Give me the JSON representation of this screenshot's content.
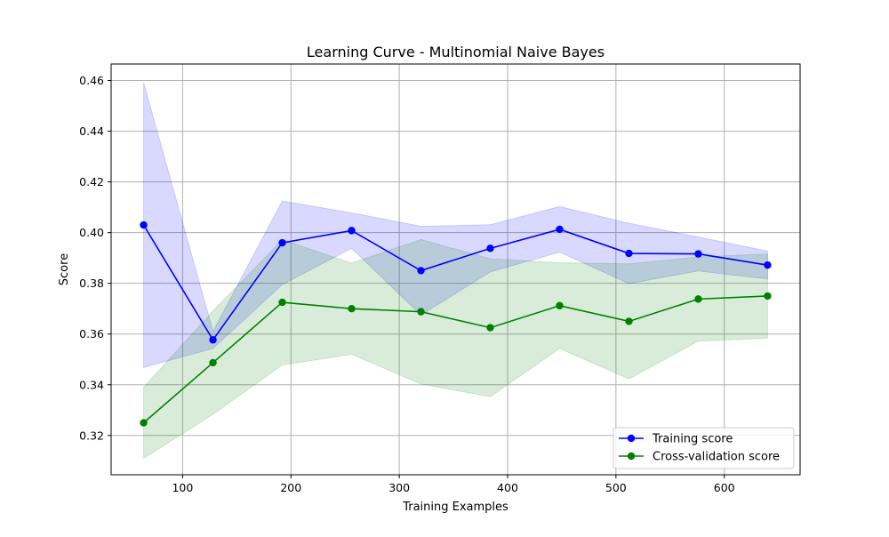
{
  "chart_data": {
    "type": "line",
    "title": "Learning Curve - Multinomial Naive Bayes",
    "xlabel": "Training Examples",
    "ylabel": "Score",
    "xlim": [
      34,
      670
    ],
    "ylim": [
      0.3045,
      0.4665
    ],
    "xticks": [
      100,
      200,
      300,
      400,
      500,
      600
    ],
    "yticks": [
      0.32,
      0.34,
      0.36,
      0.38,
      0.4,
      0.42,
      0.44,
      0.46
    ],
    "grid": true,
    "legend_position": "lower-right",
    "x": [
      64,
      128,
      192,
      256,
      320,
      384,
      448,
      512,
      576,
      640
    ],
    "series": [
      {
        "name": "Training score",
        "color": "#0000ff",
        "band_color": "#0000ff",
        "values": [
          0.403,
          0.3577,
          0.396,
          0.4008,
          0.385,
          0.3938,
          0.4013,
          0.3918,
          0.3916,
          0.3872
        ],
        "band_lower": [
          0.3468,
          0.3543,
          0.3795,
          0.3938,
          0.3675,
          0.3845,
          0.3923,
          0.3799,
          0.3849,
          0.3817
        ],
        "band_upper": [
          0.4592,
          0.3611,
          0.4125,
          0.4078,
          0.4025,
          0.4031,
          0.4103,
          0.4037,
          0.3983,
          0.3927
        ]
      },
      {
        "name": "Cross-validation score",
        "color": "#008000",
        "band_color": "#008000",
        "values": [
          0.325,
          0.3487,
          0.3725,
          0.37,
          0.3688,
          0.3625,
          0.3712,
          0.365,
          0.3738,
          0.375
        ],
        "band_lower": [
          0.311,
          0.3283,
          0.3478,
          0.352,
          0.3403,
          0.3353,
          0.3543,
          0.3423,
          0.3572,
          0.3584
        ],
        "band_upper": [
          0.339,
          0.3691,
          0.3972,
          0.388,
          0.3973,
          0.3897,
          0.3881,
          0.3877,
          0.3904,
          0.3916
        ]
      }
    ]
  }
}
